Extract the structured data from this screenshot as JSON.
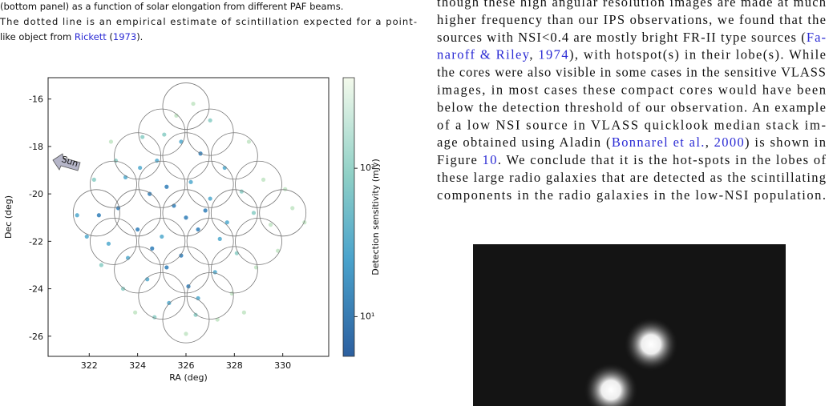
{
  "caption": {
    "lines": [
      [
        {
          "text": "(bottom panel) as a function of solar elongation from different PAF beams."
        }
      ],
      [
        {
          "text": "The dotted line is an empirical estimate of scintillation expected for a point-"
        }
      ],
      [
        {
          "text": "like object from "
        },
        {
          "text": "Rickett",
          "link": true
        },
        {
          "text": " ("
        },
        {
          "text": "1973",
          "link": true
        },
        {
          "text": ")."
        }
      ]
    ]
  },
  "body": {
    "lines": [
      [
        {
          "text": "though these high angular resolution images are made at much"
        }
      ],
      [
        {
          "text": "higher frequency than our IPS observations, we found that the"
        }
      ],
      [
        {
          "text": "sources with NSI<0.4 are mostly bright FR-II type sources ("
        },
        {
          "text": "Fa-",
          "link": true
        }
      ],
      [
        {
          "text": "naroff & Riley",
          "link": true
        },
        {
          "text": ", "
        },
        {
          "text": "1974",
          "link": true
        },
        {
          "text": "), with hotspot(s) in their lobe(s). While"
        }
      ],
      [
        {
          "text": "the cores were also visible in some cases in the sensitive VLASS"
        }
      ],
      [
        {
          "text": "images, in most cases these compact cores would have been"
        }
      ],
      [
        {
          "text": "below the detection threshold of our observation. An example"
        }
      ],
      [
        {
          "text": "of a low NSI source in VLASS quicklook median stack im-"
        }
      ],
      [
        {
          "text": "age obtained using Aladin ("
        },
        {
          "text": "Bonnarel et al.",
          "link": true
        },
        {
          "text": ", "
        },
        {
          "text": "2000",
          "link": true
        },
        {
          "text": ") is shown in"
        }
      ],
      [
        {
          "text": "Figure "
        },
        {
          "text": "10",
          "link": true
        },
        {
          "text": ". We conclude that it is the hot-spots in the lobes of"
        }
      ],
      [
        {
          "text": "these large radio galaxies that are detected as the scintillating"
        }
      ],
      [
        {
          "text": "components in the radio galaxies in the low-NSI population."
        }
      ]
    ]
  },
  "chart_data": {
    "type": "scatter",
    "xlabel": "RA (deg)",
    "ylabel": "Dec (deg)",
    "annotation": "Sun",
    "xlim": [
      320.3,
      331.9
    ],
    "xticks": [
      322,
      324,
      326,
      328,
      330
    ],
    "ylim": [
      -26.85,
      -15.1
    ],
    "yticks": [
      -26,
      -24,
      -22,
      -20,
      -18,
      -16
    ],
    "x": [
      326,
      325.5,
      326.5,
      325,
      327,
      324.5,
      326.2,
      325.8,
      327.4,
      324,
      323.2,
      322.4,
      321.5,
      323.5,
      324.8,
      325.8,
      326.6,
      327.6,
      328.3,
      328.8,
      329.5,
      330.4,
      330.9,
      329.2,
      328.1,
      327.2,
      326.1,
      325.3,
      326.4,
      326,
      324.4,
      323.6,
      322.8,
      325.2,
      324.6,
      327.9,
      328.9,
      329.8,
      326.3,
      325.6,
      327,
      324.2,
      323.1,
      322.2,
      321.9,
      322.5,
      323.4,
      324.7,
      327.3,
      328.4,
      326.8,
      325.2,
      327.7,
      324.1,
      326.5,
      330.1,
      328.6,
      325.1,
      323.9,
      322.9
    ],
    "y": [
      -21,
      -20.5,
      -21.5,
      -21.8,
      -20.2,
      -20,
      -19.5,
      -22.6,
      -21.9,
      -21.5,
      -20.6,
      -20.9,
      -20.9,
      -19.3,
      -18.6,
      -17.8,
      -18.3,
      -18.9,
      -19.9,
      -20.8,
      -21.3,
      -20.6,
      -21.2,
      -19.4,
      -22.5,
      -23.3,
      -23.9,
      -24.6,
      -25.1,
      -25.9,
      -23.6,
      -22.7,
      -22.1,
      -23.1,
      -22.3,
      -24.2,
      -23.1,
      -22.4,
      -16.2,
      -16.7,
      -16.9,
      -17.6,
      -18.6,
      -19.4,
      -21.8,
      -23,
      -24,
      -25.2,
      -25.3,
      -25,
      -20.7,
      -19.7,
      -21.2,
      -18.9,
      -24.4,
      -19.8,
      -17.8,
      -17.5,
      -25,
      -17.8
    ],
    "colors": [
      "#3b84bb",
      "#3b84bb",
      "#3b84bb",
      "#5aaed0",
      "#5aaed0",
      "#3b84bb",
      "#5aaed0",
      "#3b84bb",
      "#5aaed0",
      "#3b84bb",
      "#3b84bb",
      "#3b84bb",
      "#5aaed0",
      "#5aaed0",
      "#5aaed0",
      "#5aaed0",
      "#3b84bb",
      "#5aaed0",
      "#8fcfc8",
      "#8fcfc8",
      "#c4e6c7",
      "#c4e6c7",
      "#c4e6c7",
      "#c4e6c7",
      "#8fcfc8",
      "#5aaed0",
      "#3b84bb",
      "#5aaed0",
      "#8fcfc8",
      "#c4e6c7",
      "#5aaed0",
      "#5aaed0",
      "#5aaed0",
      "#3b84bb",
      "#3b84bb",
      "#c4e6c7",
      "#c4e6c7",
      "#c4e6c7",
      "#c4e6c7",
      "#c4e6c7",
      "#8fcfc8",
      "#8fcfc8",
      "#8fcfc8",
      "#8fcfc8",
      "#5aaed0",
      "#8fcfc8",
      "#8fcfc8",
      "#8fcfc8",
      "#c4e6c7",
      "#c4e6c7",
      "#3b84bb",
      "#3b84bb",
      "#5aaed0",
      "#5aaed0",
      "#5aaed0",
      "#c4e6c7",
      "#c4e6c7",
      "#8fcfc8",
      "#c4e6c7",
      "#c4e6c7"
    ],
    "beams": {
      "x": [
        326,
        325,
        327,
        324,
        326,
        328,
        323,
        325,
        327,
        329,
        322.3,
        324,
        326,
        328,
        330,
        323,
        325,
        327,
        329,
        324,
        326,
        328,
        325,
        327,
        326
      ],
      "y": [
        -16.3,
        -17.4,
        -17.4,
        -18.4,
        -18.4,
        -18.4,
        -19.6,
        -19.6,
        -19.6,
        -19.6,
        -20.8,
        -20.8,
        -20.8,
        -20.8,
        -20.8,
        -22,
        -22,
        -22,
        -22,
        -23.2,
        -23.2,
        -23.2,
        -24.3,
        -24.3,
        -25.3
      ]
    },
    "colorbar": {
      "label": "Detection sensitivity (mJy)",
      "log": true,
      "lim": [
        5.4,
        408
      ],
      "ticks": [
        {
          "value": 100,
          "label": "10²"
        },
        {
          "value": 10,
          "label": "10¹"
        }
      ]
    }
  }
}
